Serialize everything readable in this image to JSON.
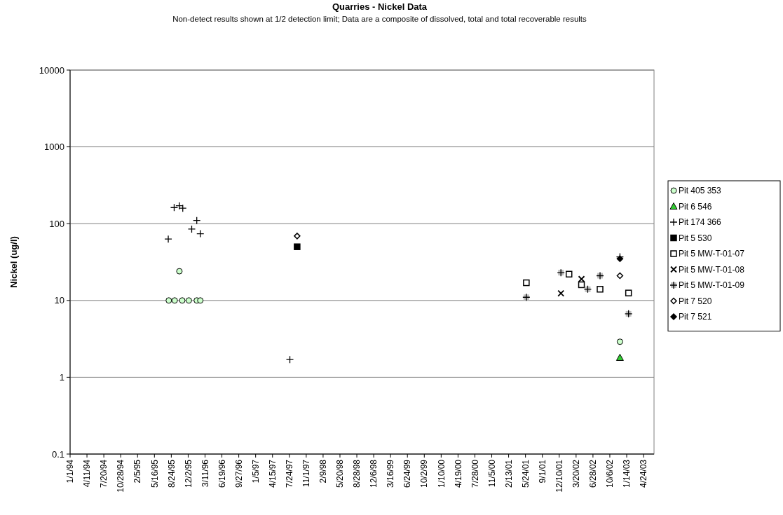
{
  "chart_data": {
    "type": "scatter",
    "title": "Quarries - Nickel Data",
    "subtitle": "Non-detect results shown at 1/2 detection limit; Data are a composite of dissolved, total and total recoverable results",
    "ylabel": "Nickel (ug/l)",
    "log": "y",
    "grid": "y",
    "legend": "right",
    "xlim": [
      "1994-01-01",
      "2003-06-25"
    ],
    "ylim": [
      0.1,
      10000
    ],
    "yticks": [
      0.1,
      1,
      10,
      100,
      1000,
      10000
    ],
    "xticks": [
      {
        "value": "1994-01-01",
        "label": "1/1/94"
      },
      {
        "value": "1994-04-11",
        "label": "4/11/94"
      },
      {
        "value": "1994-07-20",
        "label": "7/20/94"
      },
      {
        "value": "1994-10-28",
        "label": "10/28/94"
      },
      {
        "value": "1995-02-05",
        "label": "2/5/95"
      },
      {
        "value": "1995-05-16",
        "label": "5/16/95"
      },
      {
        "value": "1995-08-24",
        "label": "8/24/95"
      },
      {
        "value": "1995-12-02",
        "label": "12/2/95"
      },
      {
        "value": "1996-03-11",
        "label": "3/11/96"
      },
      {
        "value": "1996-06-19",
        "label": "6/19/96"
      },
      {
        "value": "1996-09-27",
        "label": "9/27/96"
      },
      {
        "value": "1997-01-05",
        "label": "1/5/97"
      },
      {
        "value": "1997-04-15",
        "label": "4/15/97"
      },
      {
        "value": "1997-07-24",
        "label": "7/24/97"
      },
      {
        "value": "1997-11-01",
        "label": "11/1/97"
      },
      {
        "value": "1998-02-09",
        "label": "2/9/98"
      },
      {
        "value": "1998-05-20",
        "label": "5/20/98"
      },
      {
        "value": "1998-08-28",
        "label": "8/28/98"
      },
      {
        "value": "1998-12-06",
        "label": "12/6/98"
      },
      {
        "value": "1999-03-16",
        "label": "3/16/99"
      },
      {
        "value": "1999-06-24",
        "label": "6/24/99"
      },
      {
        "value": "1999-10-02",
        "label": "10/2/99"
      },
      {
        "value": "2000-01-10",
        "label": "1/10/00"
      },
      {
        "value": "2000-04-19",
        "label": "4/19/00"
      },
      {
        "value": "2000-07-28",
        "label": "7/28/00"
      },
      {
        "value": "2000-11-05",
        "label": "11/5/00"
      },
      {
        "value": "2001-02-13",
        "label": "2/13/01"
      },
      {
        "value": "2001-05-24",
        "label": "5/24/01"
      },
      {
        "value": "2001-09-01",
        "label": "9/1/01"
      },
      {
        "value": "2001-12-10",
        "label": "12/10/01"
      },
      {
        "value": "2002-03-20",
        "label": "3/20/02"
      },
      {
        "value": "2002-06-28",
        "label": "6/28/02"
      },
      {
        "value": "2002-10-06",
        "label": "10/6/02"
      },
      {
        "value": "2003-01-14",
        "label": "1/14/03"
      },
      {
        "value": "2003-04-24",
        "label": "4/24/03"
      }
    ],
    "series": [
      {
        "name": "Pit 405 353",
        "color": "#ccffcc",
        "marker": "circle",
        "x": [
          "1995-08-09",
          "1995-09-13",
          "1995-10-11",
          "1995-10-28",
          "1995-12-06",
          "1996-01-22",
          "1996-02-12",
          "2002-12-05"
        ],
        "values": [
          10,
          10,
          24,
          10,
          10,
          10,
          10,
          2.9
        ]
      },
      {
        "name": "Pit 6 546",
        "color": "#33cc33",
        "marker": "triangle",
        "x": [
          "2002-12-05"
        ],
        "values": [
          1.8
        ]
      },
      {
        "name": "Pit 174 366",
        "color": "#000000",
        "marker": "cross",
        "x": [
          "1995-08-06",
          "1995-09-10",
          "1995-10-11",
          "1995-10-31",
          "1995-12-23",
          "1996-01-22",
          "1996-02-12",
          "1997-07-27",
          "2002-12-05"
        ],
        "values": [
          63,
          162,
          171,
          159,
          85,
          110,
          74,
          1.7,
          37
        ]
      },
      {
        "name": "Pit 5 530",
        "color": "#000000",
        "marker": "square",
        "x": [
          "1997-09-08"
        ],
        "values": [
          50
        ]
      },
      {
        "name": "Pit 5 MW-T-01-07",
        "color": "#ffffff",
        "marker": "square",
        "x": [
          "2001-05-29",
          "2002-02-06",
          "2002-04-21",
          "2002-08-09",
          "2003-01-25"
        ],
        "values": [
          17,
          22,
          16,
          14,
          12.5
        ]
      },
      {
        "name": "Pit 5 MW-T-01-08",
        "color": "#000000",
        "marker": "x",
        "x": [
          "2001-12-20",
          "2002-04-21"
        ],
        "values": [
          12.4,
          19
        ]
      },
      {
        "name": "Pit 5 MW-T-01-09",
        "color": "#c0c0c0",
        "marker": "square",
        "x": [
          "2001-05-29",
          "2001-12-20",
          "2002-05-28",
          "2002-08-09",
          "2003-01-25"
        ],
        "values": [
          11,
          23,
          14,
          21,
          6.7
        ]
      },
      {
        "name": "Pit 7 520",
        "color": "#ffffff",
        "marker": "diamond",
        "x": [
          "1997-09-08",
          "2002-12-05"
        ],
        "values": [
          69,
          21
        ]
      },
      {
        "name": "Pit 7 521",
        "color": "#000000",
        "marker": "diamond",
        "x": [
          "2002-12-05"
        ],
        "values": [
          35
        ]
      }
    ]
  }
}
